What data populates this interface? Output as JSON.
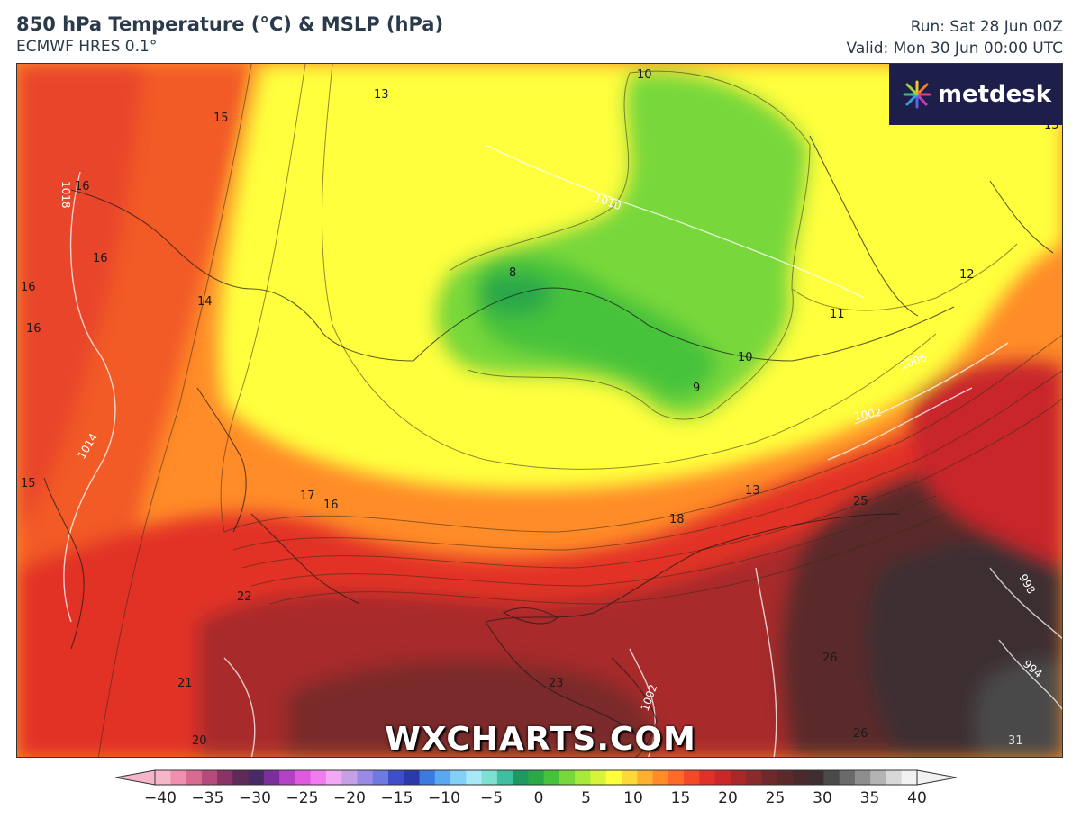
{
  "header": {
    "title": "850 hPa Temperature (°C) & MSLP (hPa)",
    "model": "ECMWF HRES 0.1°",
    "run": "Run: Sat 28 Jun 00Z",
    "valid": "Valid: Mon 30 Jun 00:00 UTC"
  },
  "logo": {
    "text": "metdesk"
  },
  "watermark": "WXCHARTS.COM",
  "map": {
    "temperature_labels": [
      "13",
      "15",
      "16",
      "16",
      "16",
      "16",
      "14",
      "8",
      "10",
      "11",
      "10",
      "9",
      "12",
      "15",
      "15",
      "17",
      "16",
      "13",
      "18",
      "25",
      "22",
      "21",
      "23",
      "26",
      "20",
      "26",
      "31",
      "13"
    ],
    "pressure_labels": [
      "1010",
      "1018",
      "1014",
      "1006",
      "1002",
      "998",
      "994",
      "1002"
    ]
  },
  "colorbar": {
    "unit": "°C",
    "min": -40,
    "max": 40,
    "ticks": [
      "−40",
      "−35",
      "−30",
      "−25",
      "−20",
      "−15",
      "−10",
      "−5",
      "0",
      "5",
      "10",
      "15",
      "20",
      "25",
      "30",
      "35",
      "40"
    ],
    "colors": [
      "#f6b6c9",
      "#f08fb0",
      "#d96a92",
      "#b34c7a",
      "#8a3466",
      "#5e2a58",
      "#4a2a66",
      "#7a2f9a",
      "#b341c6",
      "#e05ae0",
      "#f07cf0",
      "#f2a8f2",
      "#c6a0e6",
      "#9a8ae6",
      "#6e7ae0",
      "#3c4fc8",
      "#2a3aa8",
      "#3c7ae0",
      "#5aa8f0",
      "#82d0f8",
      "#a8e8f8",
      "#7ee0d0",
      "#3ec0a0",
      "#1e9a60",
      "#2aa848",
      "#46c23a",
      "#78d83a",
      "#a8ea3a",
      "#d8f43a",
      "#ffff3c",
      "#ffd83a",
      "#ffb030",
      "#ff8c28",
      "#ff6a28",
      "#f24a28",
      "#e0302a",
      "#c8282a",
      "#a8282a",
      "#8a2a2a",
      "#6e2a2a",
      "#5a2a2a",
      "#4a2a2c",
      "#3e2e30",
      "#4a4a4a",
      "#6a6a6a",
      "#8e8e8e",
      "#b4b4b4",
      "#d8d8d8",
      "#f2f2f2"
    ]
  }
}
